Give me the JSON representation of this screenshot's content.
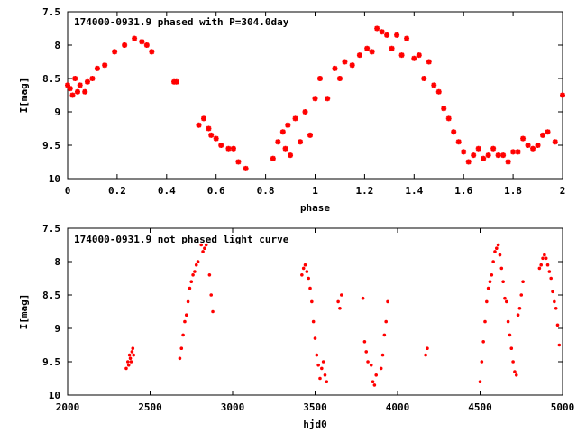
{
  "chart_data": [
    {
      "type": "scatter",
      "title": "174000-0931.9 phased with P=304.0day",
      "xlabel": "phase",
      "ylabel": "I[mag]",
      "xlim": [
        0,
        2
      ],
      "ylim": [
        10,
        7.5
      ],
      "y_inverted": true,
      "xticks": [
        "0",
        "0.2",
        "0.4",
        "0.6",
        "0.8",
        "1",
        "1.2",
        "1.4",
        "1.6",
        "1.8",
        "2"
      ],
      "yticks": [
        "7.5",
        "8",
        "8.5",
        "9",
        "9.5",
        "10"
      ],
      "marker": "star",
      "color": "#ff0000",
      "x": [
        0.0,
        0.01,
        0.02,
        0.03,
        0.04,
        0.05,
        0.07,
        0.08,
        0.1,
        0.12,
        0.15,
        0.19,
        0.23,
        0.27,
        0.3,
        0.32,
        0.34,
        0.43,
        0.44,
        0.53,
        0.55,
        0.57,
        0.58,
        0.6,
        0.62,
        0.65,
        0.67,
        0.69,
        0.72,
        0.83,
        0.85,
        0.87,
        0.88,
        0.89,
        0.9,
        0.92,
        0.94,
        0.96,
        0.98,
        1.0,
        1.02,
        1.05,
        1.08,
        1.1,
        1.12,
        1.15,
        1.18,
        1.21,
        1.23,
        1.25,
        1.27,
        1.29,
        1.31,
        1.33,
        1.35,
        1.37,
        1.4,
        1.42,
        1.44,
        1.46,
        1.48,
        1.5,
        1.52,
        1.54,
        1.56,
        1.58,
        1.6,
        1.62,
        1.64,
        1.66,
        1.68,
        1.7,
        1.72,
        1.74,
        1.76,
        1.78,
        1.8,
        1.82,
        1.84,
        1.86,
        1.88,
        1.9,
        1.92,
        1.94,
        1.97,
        2.0
      ],
      "y": [
        8.6,
        8.65,
        8.75,
        8.5,
        8.7,
        8.6,
        8.7,
        8.55,
        8.5,
        8.35,
        8.3,
        8.1,
        8.0,
        7.9,
        7.95,
        8.0,
        8.1,
        8.55,
        8.55,
        9.2,
        9.1,
        9.25,
        9.35,
        9.4,
        9.5,
        9.55,
        9.55,
        9.75,
        9.85,
        9.7,
        9.45,
        9.3,
        9.55,
        9.2,
        9.65,
        9.1,
        9.45,
        9.0,
        9.35,
        8.8,
        8.5,
        8.8,
        8.35,
        8.5,
        8.25,
        8.3,
        8.15,
        8.05,
        8.1,
        7.75,
        7.8,
        7.85,
        8.05,
        7.85,
        8.15,
        7.9,
        8.2,
        8.15,
        8.5,
        8.25,
        8.6,
        8.7,
        8.95,
        9.1,
        9.3,
        9.45,
        9.6,
        9.75,
        9.65,
        9.55,
        9.7,
        9.65,
        9.55,
        9.65,
        9.65,
        9.75,
        9.6,
        9.6,
        9.4,
        9.5,
        9.55,
        9.5,
        9.35,
        9.3,
        9.45,
        8.75
      ]
    },
    {
      "type": "scatter",
      "title": "174000-0931.9 not phased light curve",
      "xlabel": "hjd0",
      "ylabel": "I[mag]",
      "xlim": [
        2000,
        5000
      ],
      "ylim": [
        10,
        7.5
      ],
      "y_inverted": true,
      "xticks": [
        "2000",
        "2500",
        "3000",
        "3500",
        "4000",
        "4500",
        "5000"
      ],
      "yticks": [
        "7.5",
        "8",
        "8.5",
        "9",
        "9.5",
        "10"
      ],
      "marker": "dot",
      "color": "#ff0000",
      "x": [
        2355,
        2365,
        2370,
        2375,
        2380,
        2385,
        2390,
        2395,
        2400,
        2680,
        2690,
        2700,
        2710,
        2720,
        2730,
        2740,
        2750,
        2760,
        2770,
        2780,
        2790,
        2810,
        2820,
        2830,
        2840,
        2860,
        2870,
        2880,
        3420,
        3430,
        3440,
        3450,
        3460,
        3470,
        3480,
        3490,
        3500,
        3510,
        3520,
        3530,
        3540,
        3550,
        3560,
        3570,
        3640,
        3650,
        3660,
        3790,
        3800,
        3810,
        3820,
        3840,
        3850,
        3860,
        3870,
        3900,
        3910,
        3920,
        3930,
        3940,
        4170,
        4180,
        4500,
        4510,
        4520,
        4530,
        4540,
        4550,
        4560,
        4570,
        4580,
        4590,
        4600,
        4610,
        4620,
        4630,
        4640,
        4650,
        4660,
        4670,
        4680,
        4690,
        4700,
        4710,
        4720,
        4730,
        4740,
        4750,
        4760,
        4860,
        4870,
        4880,
        4890,
        4900,
        4910,
        4920,
        4930,
        4940,
        4950,
        4960,
        4970,
        4980
      ],
      "y": [
        9.6,
        9.5,
        9.55,
        9.4,
        9.45,
        9.5,
        9.35,
        9.3,
        9.4,
        9.45,
        9.3,
        9.1,
        8.9,
        8.8,
        8.6,
        8.4,
        8.3,
        8.2,
        8.15,
        8.05,
        8.0,
        7.75,
        7.85,
        7.8,
        7.75,
        8.2,
        8.5,
        8.75,
        8.2,
        8.1,
        8.05,
        8.15,
        8.25,
        8.4,
        8.6,
        8.9,
        9.15,
        9.4,
        9.55,
        9.75,
        9.6,
        9.5,
        9.7,
        9.8,
        8.6,
        8.7,
        8.5,
        8.55,
        9.2,
        9.35,
        9.5,
        9.55,
        9.8,
        9.85,
        9.7,
        9.6,
        9.4,
        9.1,
        8.9,
        8.6,
        9.4,
        9.3,
        9.8,
        9.5,
        9.2,
        8.9,
        8.6,
        8.4,
        8.3,
        8.2,
        8.0,
        7.85,
        7.8,
        7.75,
        7.9,
        8.1,
        8.3,
        8.55,
        8.6,
        8.9,
        9.1,
        9.3,
        9.5,
        9.65,
        9.7,
        8.8,
        8.7,
        8.5,
        8.3,
        8.1,
        8.05,
        7.95,
        7.9,
        7.95,
        8.05,
        8.15,
        8.25,
        8.45,
        8.6,
        8.7,
        8.95,
        9.25
      ]
    }
  ]
}
